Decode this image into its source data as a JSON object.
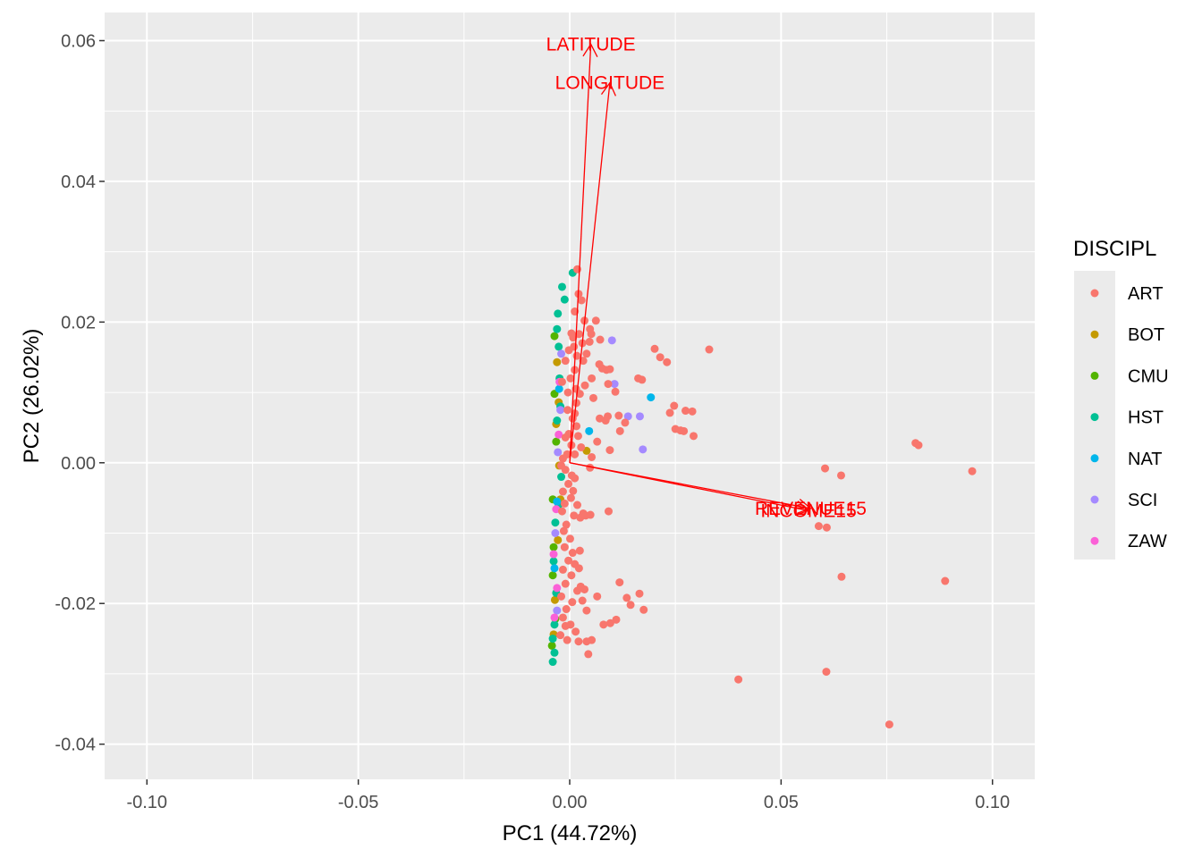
{
  "chart_data": {
    "type": "scatter",
    "subtype": "pca-biplot",
    "title": "",
    "xlabel": "PC1 (44.72%)",
    "ylabel": "PC2 (26.02%)",
    "xlim": [
      -0.11,
      0.11
    ],
    "ylim": [
      -0.045,
      0.064
    ],
    "x_ticks": [
      -0.1,
      -0.05,
      0.0,
      0.05,
      0.1
    ],
    "x_tick_labels": [
      "-0.10",
      "-0.05",
      "0.00",
      "0.05",
      "0.10"
    ],
    "y_ticks": [
      -0.04,
      -0.02,
      0.0,
      0.02,
      0.04,
      0.06
    ],
    "y_tick_labels": [
      "-0.04",
      "-0.02",
      "0.00",
      "0.02",
      "0.04",
      "0.06"
    ],
    "grid": true,
    "background": "#ebebeb",
    "legend": {
      "title": "DISCIPL",
      "position": "right",
      "entries": [
        {
          "label": "ART",
          "color": "#F8766D"
        },
        {
          "label": "BOT",
          "color": "#C49A00"
        },
        {
          "label": "CMU",
          "color": "#53B400"
        },
        {
          "label": "HST",
          "color": "#00C094"
        },
        {
          "label": "NAT",
          "color": "#00B6EB"
        },
        {
          "label": "SCI",
          "color": "#A58AFF"
        },
        {
          "label": "ZAW",
          "color": "#FB61D7"
        }
      ]
    },
    "loadings": [
      {
        "label": "LATITUDE",
        "x": 0.005,
        "y": 0.0595,
        "color": "#FF0000"
      },
      {
        "label": "LONGITUDE",
        "x": 0.0095,
        "y": 0.054,
        "color": "#FF0000"
      },
      {
        "label": "REVENUE15",
        "x": 0.057,
        "y": -0.0065,
        "color": "#FF0000"
      },
      {
        "label": "INCOME15",
        "x": 0.0565,
        "y": -0.0068,
        "color": "#FF0000"
      }
    ],
    "series": [
      {
        "name": "ART",
        "color": "#F8766D",
        "points": [
          [
            0.0952,
            -0.0012
          ],
          [
            0.0825,
            0.0025
          ],
          [
            0.0818,
            0.0028
          ],
          [
            0.0888,
            -0.0168
          ],
          [
            0.0756,
            -0.0372
          ],
          [
            0.0607,
            -0.0297
          ],
          [
            0.0399,
            -0.0308
          ],
          [
            0.0604,
            -0.0008
          ],
          [
            0.0642,
            -0.0018
          ],
          [
            0.0643,
            -0.0162
          ],
          [
            0.0608,
            -0.0092
          ],
          [
            0.0589,
            -0.009
          ],
          [
            0.033,
            0.0161
          ],
          [
            0.029,
            0.0073
          ],
          [
            0.0274,
            0.0074
          ],
          [
            0.0247,
            0.0081
          ],
          [
            0.0237,
            0.0071
          ],
          [
            0.0201,
            0.0162
          ],
          [
            0.0214,
            0.015
          ],
          [
            0.023,
            0.0143
          ],
          [
            0.025,
            0.0048
          ],
          [
            0.0262,
            0.0046
          ],
          [
            0.027,
            0.0045
          ],
          [
            0.0293,
            0.0038
          ],
          [
            0.0171,
            0.0118
          ],
          [
            0.0162,
            0.012
          ],
          [
            0.0131,
            0.0057
          ],
          [
            0.0116,
            0.0067
          ],
          [
            0.0085,
            0.006
          ],
          [
            0.0065,
            0.003
          ],
          [
            0.0052,
            0.0008
          ],
          [
            0.0048,
            -0.0007
          ],
          [
            0.0119,
            0.0045
          ],
          [
            0.0095,
            0.0018
          ],
          [
            0.009,
            0.0066
          ],
          [
            0.0071,
            0.0063
          ],
          [
            0.0108,
            0.0101
          ],
          [
            0.0091,
            0.0112
          ],
          [
            0.0077,
            0.0134
          ],
          [
            0.0087,
            0.0132
          ],
          [
            0.0095,
            0.0133
          ],
          [
            0.0072,
            0.0175
          ],
          [
            0.0062,
            0.0202
          ],
          [
            0.0047,
            0.0172
          ],
          [
            0.0048,
            0.019
          ],
          [
            0.0035,
            0.0202
          ],
          [
            0.0022,
            0.0183
          ],
          [
            0.0021,
            0.024
          ],
          [
            0.0018,
            0.0275
          ],
          [
            0.0028,
            0.0231
          ],
          [
            0.0012,
            0.0215
          ],
          [
            0.0004,
            0.0184
          ],
          [
            0.001,
            0.0165
          ],
          [
            0.0017,
            0.0152
          ],
          [
            0.0012,
            0.0132
          ],
          [
            0.0002,
            0.012
          ],
          [
            0.0015,
            0.0105
          ],
          [
            0.0024,
            0.0098
          ],
          [
            0.0016,
            0.0085
          ],
          [
            -0.0005,
            0.0075
          ],
          [
            0.0007,
            0.0063
          ],
          [
            0.0016,
            0.0052
          ],
          [
            -0.0002,
            0.0041
          ],
          [
            -0.001,
            0.0036
          ],
          [
            0.0004,
            0.0025
          ],
          [
            0.0012,
            0.0012
          ],
          [
            -0.0016,
            0.0006
          ],
          [
            -0.002,
            -0.0004
          ],
          [
            -0.001,
            -0.001
          ],
          [
            0.0005,
            -0.0018
          ],
          [
            -0.0003,
            -0.003
          ],
          [
            -0.0016,
            -0.0041
          ],
          [
            0.0003,
            -0.005
          ],
          [
            -0.0012,
            -0.0058
          ],
          [
            -0.0018,
            -0.0069
          ],
          [
            0.001,
            -0.0075
          ],
          [
            0.0025,
            -0.0078
          ],
          [
            0.0032,
            -0.0072
          ],
          [
            0.0038,
            -0.0075
          ],
          [
            0.0049,
            -0.0074
          ],
          [
            0.0092,
            -0.0069
          ],
          [
            -0.0008,
            -0.0088
          ],
          [
            -0.0014,
            -0.0097
          ],
          [
            0.0001,
            -0.0108
          ],
          [
            -0.0012,
            -0.012
          ],
          [
            0.0007,
            -0.0128
          ],
          [
            -0.0003,
            -0.0139
          ],
          [
            0.0012,
            -0.0144
          ],
          [
            -0.0016,
            -0.0152
          ],
          [
            0.0004,
            -0.016
          ],
          [
            -0.001,
            -0.0172
          ],
          [
            0.0018,
            -0.0182
          ],
          [
            0.0035,
            -0.018
          ],
          [
            -0.002,
            -0.019
          ],
          [
            0.0006,
            -0.0198
          ],
          [
            -0.0008,
            -0.0208
          ],
          [
            0.003,
            -0.0196
          ],
          [
            -0.0016,
            -0.022
          ],
          [
            0.0002,
            -0.023
          ],
          [
            0.0014,
            -0.024
          ],
          [
            -0.0022,
            -0.0245
          ],
          [
            -0.0006,
            -0.0252
          ],
          [
            0.0021,
            -0.0254
          ],
          [
            0.004,
            -0.0254
          ],
          [
            0.0052,
            -0.0252
          ],
          [
            0.0044,
            -0.0272
          ],
          [
            0.0118,
            -0.017
          ],
          [
            0.0135,
            -0.0192
          ],
          [
            0.0144,
            -0.0202
          ],
          [
            0.0165,
            -0.0186
          ],
          [
            0.0175,
            -0.0209
          ],
          [
            0.011,
            -0.0223
          ],
          [
            0.0096,
            -0.0228
          ],
          [
            0.0065,
            -0.019
          ],
          [
            0.008,
            -0.023
          ],
          [
            0.0026,
            -0.0176
          ],
          [
            0.004,
            -0.021
          ],
          [
            0.007,
            0.014
          ],
          [
            0.0052,
            0.012
          ],
          [
            0.0056,
            0.0092
          ],
          [
            0.0036,
            0.011
          ],
          [
            0.0032,
            0.0145
          ],
          [
            0.004,
            0.0155
          ],
          [
            0.003,
            0.017
          ],
          [
            0.0051,
            0.0183
          ],
          [
            0.0012,
            0.007
          ],
          [
            0.002,
            0.0038
          ],
          [
            0.0027,
            0.0022
          ],
          [
            0.0008,
            -0.004
          ],
          [
            0.0018,
            -0.006
          ],
          [
            -0.0004,
            0.01
          ],
          [
            -0.0018,
            0.0115
          ],
          [
            -0.001,
            0.0145
          ],
          [
            -0.0002,
            0.016
          ],
          [
            0.0008,
            0.0178
          ],
          [
            -0.0006,
            0.0012
          ],
          [
            0.0012,
            -0.0022
          ],
          [
            0.0024,
            -0.0125
          ],
          [
            0.0022,
            -0.015
          ],
          [
            -0.001,
            -0.0232
          ]
        ]
      },
      {
        "name": "BOT",
        "color": "#C49A00",
        "points": [
          [
            0.004,
            0.0017
          ],
          [
            -0.0025,
            -0.0004
          ],
          [
            -0.0032,
            0.0055
          ],
          [
            -0.0028,
            -0.011
          ],
          [
            -0.0035,
            -0.0195
          ],
          [
            -0.003,
            0.0143
          ],
          [
            -0.0022,
            -0.0052
          ],
          [
            -0.0038,
            -0.0244
          ],
          [
            -0.0026,
            0.0086
          ]
        ]
      },
      {
        "name": "CMU",
        "color": "#53B400",
        "points": [
          [
            -0.0038,
            -0.012
          ],
          [
            -0.004,
            -0.016
          ],
          [
            -0.0036,
            0.0098
          ],
          [
            -0.0034,
            -0.0222
          ],
          [
            -0.004,
            -0.0052
          ],
          [
            -0.0032,
            0.003
          ],
          [
            -0.0042,
            -0.026
          ],
          [
            -0.0036,
            0.018
          ]
        ]
      },
      {
        "name": "HST",
        "color": "#00C094",
        "points": [
          [
            0.0007,
            0.027
          ],
          [
            -0.0028,
            0.0212
          ],
          [
            -0.004,
            -0.0283
          ],
          [
            -0.0036,
            -0.027
          ],
          [
            -0.0026,
            0.0165
          ],
          [
            -0.0034,
            -0.0085
          ],
          [
            -0.0038,
            -0.014
          ],
          [
            -0.003,
            0.006
          ],
          [
            -0.0024,
            0.012
          ],
          [
            -0.002,
            -0.002
          ],
          [
            -0.0018,
            0.025
          ],
          [
            -0.0036,
            -0.023
          ],
          [
            -0.0012,
            0.0232
          ],
          [
            -0.0032,
            -0.0185
          ],
          [
            -0.0026,
            -0.006
          ],
          [
            -0.0022,
            0.008
          ],
          [
            -0.004,
            -0.025
          ],
          [
            -0.003,
            0.019
          ]
        ]
      },
      {
        "name": "NAT",
        "color": "#00B6EB",
        "points": [
          [
            0.0192,
            0.0093
          ],
          [
            0.0046,
            0.0045
          ],
          [
            -0.003,
            -0.0055
          ],
          [
            -0.0025,
            0.0105
          ],
          [
            -0.0036,
            -0.015
          ]
        ]
      },
      {
        "name": "SCI",
        "color": "#A58AFF",
        "points": [
          [
            0.0166,
            0.0066
          ],
          [
            0.0173,
            0.0019
          ],
          [
            0.0138,
            0.0066
          ],
          [
            0.0106,
            0.0112
          ],
          [
            0.01,
            0.0174
          ],
          [
            -0.002,
            0.0155
          ],
          [
            -0.0028,
            0.0015
          ],
          [
            -0.0034,
            -0.01
          ],
          [
            -0.0022,
            0.0075
          ],
          [
            -0.003,
            -0.021
          ]
        ]
      },
      {
        "name": "ZAW",
        "color": "#FB61D7",
        "points": [
          [
            -0.0036,
            -0.022
          ],
          [
            -0.003,
            -0.0178
          ],
          [
            -0.0032,
            -0.0066
          ],
          [
            -0.0024,
            0.0115
          ],
          [
            -0.0038,
            -0.013
          ],
          [
            -0.0026,
            0.004
          ]
        ]
      }
    ]
  }
}
